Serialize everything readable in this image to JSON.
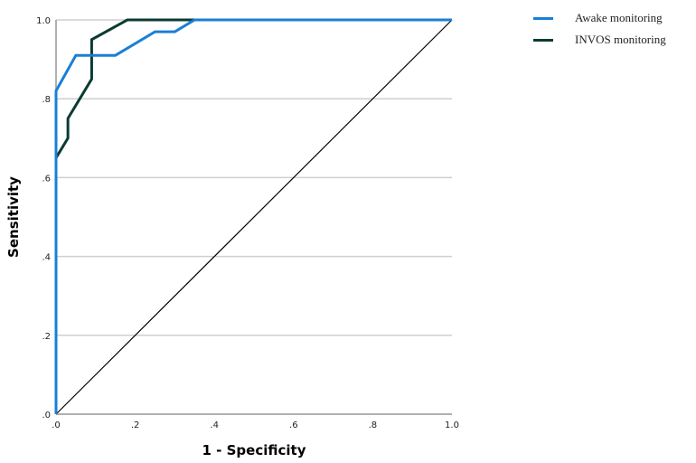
{
  "chart_data": {
    "type": "line",
    "title": "",
    "xlabel": "1 - Specificity",
    "ylabel": "Sensitivity",
    "xlim": [
      0,
      1
    ],
    "ylim": [
      0,
      1
    ],
    "x_ticks": [
      ".0",
      ".2",
      ".4",
      ".6",
      ".8",
      "1.0"
    ],
    "y_ticks": [
      ".0",
      ".2",
      ".4",
      ".6",
      ".8",
      "1.0"
    ],
    "grid": "horizontal",
    "legend_position": "top-right outside",
    "series": [
      {
        "name": "Awake monitoring",
        "color": "#1a7fd4",
        "x": [
          0.0,
          0.0,
          0.05,
          0.15,
          0.25,
          0.3,
          0.35,
          1.0
        ],
        "y": [
          0.0,
          0.82,
          0.91,
          0.91,
          0.97,
          0.97,
          1.0,
          1.0
        ]
      },
      {
        "name": "INVOS monitoring",
        "color": "#0b3b33",
        "x": [
          0.0,
          0.0,
          0.03,
          0.03,
          0.09,
          0.09,
          0.18,
          1.0
        ],
        "y": [
          0.0,
          0.65,
          0.7,
          0.75,
          0.85,
          0.95,
          1.0,
          1.0
        ]
      },
      {
        "name": "Reference line",
        "color": "#000000",
        "x": [
          0.0,
          1.0
        ],
        "y": [
          0.0,
          1.0
        ]
      }
    ]
  },
  "legend": {
    "items": [
      {
        "label": "Awake monitoring",
        "color": "#1a7fd4"
      },
      {
        "label": "INVOS monitoring",
        "color": "#0b3b33"
      }
    ]
  },
  "axes": {
    "x_title": "1 - Specificity",
    "y_title": "Sensitivity"
  }
}
